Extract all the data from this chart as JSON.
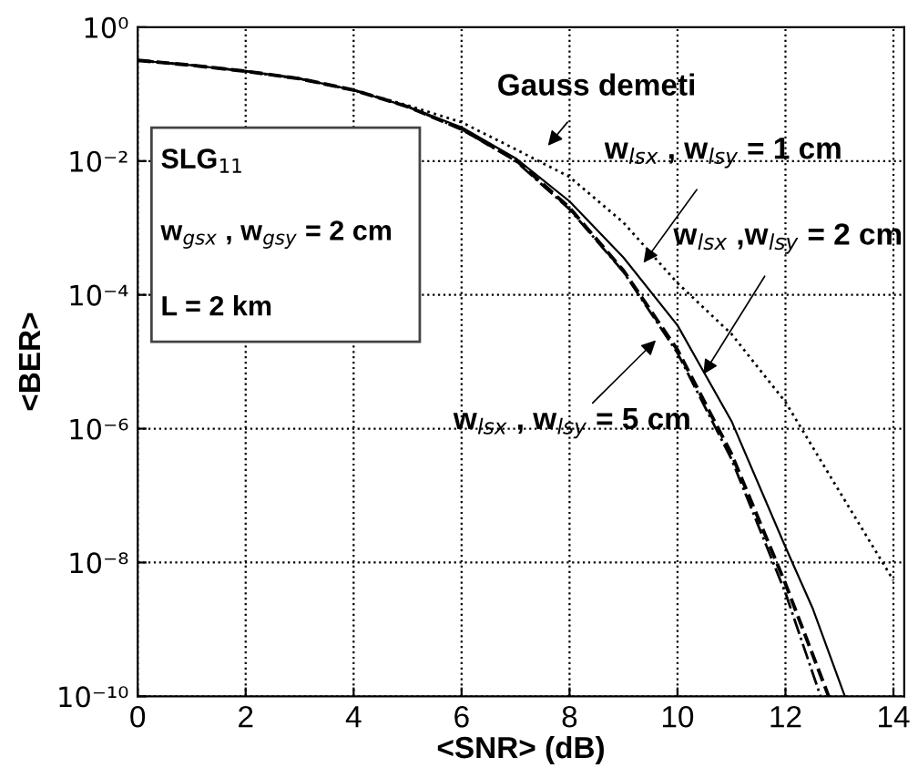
{
  "chart_data": {
    "type": "line",
    "xlabel": "<SNR> (dB)",
    "ylabel": "<BER>",
    "log": "y",
    "grid": true,
    "legend": false,
    "xlim": [
      0,
      14.2
    ],
    "xticks": [
      0,
      2,
      4,
      6,
      8,
      10,
      12,
      14
    ],
    "ylim": [
      1e-10,
      1
    ],
    "yticks": [
      {
        "value": 1,
        "label": "10⁰"
      },
      {
        "value": 0.01,
        "label": "10⁻²"
      },
      {
        "value": 0.0001,
        "label": "10⁻⁴"
      },
      {
        "value": 1e-06,
        "label": "10⁻⁶"
      },
      {
        "value": 1e-08,
        "label": "10⁻⁸"
      },
      {
        "value": 1e-10,
        "label": "10⁻¹⁰"
      }
    ],
    "series": [
      {
        "color": "#000000",
        "line_style": "dotted",
        "x": [
          0,
          1,
          2,
          3,
          4,
          5,
          6,
          7,
          8,
          9,
          10,
          11,
          12,
          13,
          14
        ],
        "values": [
          0.32,
          0.27,
          0.22,
          0.17,
          0.115,
          0.068,
          0.038,
          0.015,
          0.0058,
          0.0012,
          0.00015,
          2.6e-05,
          2.5e-06,
          1.15e-07,
          5.4e-09
        ]
      },
      {
        "color": "#000000",
        "line_style": "dashdot",
        "x": [
          0,
          1,
          2,
          3,
          4,
          5,
          6,
          7,
          8,
          9,
          10,
          11,
          12,
          12.65
        ],
        "values": [
          0.32,
          0.27,
          0.22,
          0.17,
          0.115,
          0.065,
          0.03,
          0.01,
          0.0019,
          0.00022,
          1.35e-05,
          3.5e-07,
          3.5e-09,
          1e-10
        ]
      },
      {
        "color": "#000000",
        "line_style": "solid",
        "x": [
          0,
          1,
          2,
          3,
          4,
          5,
          6,
          7,
          8,
          9,
          10,
          11,
          12,
          12.5,
          13.1
        ],
        "values": [
          0.32,
          0.27,
          0.22,
          0.17,
          0.115,
          0.065,
          0.032,
          0.011,
          0.0025,
          0.00036,
          3.5e-05,
          1.3e-06,
          1.7e-08,
          2.1e-09,
          1e-10
        ]
      },
      {
        "color": "#000000",
        "line_style": "dashed",
        "x": [
          0,
          1,
          2,
          3,
          4,
          5,
          6,
          7,
          8,
          9,
          10,
          11,
          12,
          12.8
        ],
        "values": [
          0.32,
          0.27,
          0.22,
          0.17,
          0.115,
          0.065,
          0.03,
          0.0105,
          0.002,
          0.00023,
          1.5e-05,
          4.2e-07,
          4.8e-09,
          1e-10
        ]
      }
    ],
    "annotations": [
      "Gauss demeti",
      "w$_{lsx}$ , w$_{lsy}$ = 1 cm",
      {
        "text": "w$_{lsx}$ ,w$_{lsy}$ = 2 cm",
        "x": 10.48,
        "y": 6.5e-06
      },
      "w$_{lsx}$ , w$_{lsy}$ = 5 cm",
      "SLG$_{11}$",
      "w$_{gsx}$ , w$_{gsy}$ = 2 cm",
      "L = 2 km"
    ]
  }
}
